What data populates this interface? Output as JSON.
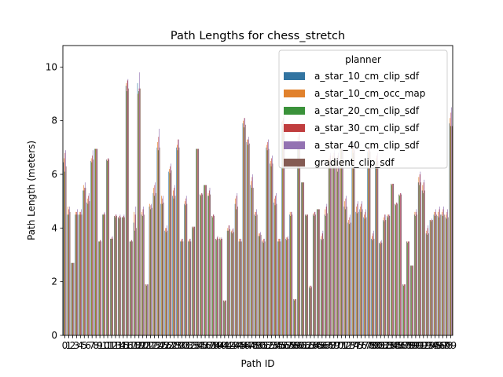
{
  "chart_data": {
    "type": "bar",
    "title": "Path Lengths for chess_stretch",
    "xlabel": "Path ID",
    "ylabel": "Path Length (meters)",
    "ylim": [
      0,
      10.8
    ],
    "yticks": [
      0,
      2,
      4,
      6,
      8,
      10
    ],
    "grid": false,
    "legend": {
      "title": "planner",
      "placement": "top-right"
    },
    "categories": [
      "0",
      "1",
      "2",
      "3",
      "4",
      "5",
      "6",
      "7",
      "8",
      "9",
      "10",
      "11",
      "12",
      "13",
      "14",
      "15",
      "16",
      "17",
      "18",
      "19",
      "20",
      "21",
      "22",
      "23",
      "24",
      "25",
      "26",
      "27",
      "28",
      "29",
      "30",
      "31",
      "32",
      "33",
      "34",
      "35",
      "36",
      "37",
      "38",
      "39",
      "40",
      "41",
      "42",
      "43",
      "44",
      "45",
      "46",
      "47",
      "48",
      "49",
      "50",
      "51",
      "52",
      "53",
      "54",
      "55",
      "56",
      "57",
      "58",
      "59",
      "60",
      "61",
      "62",
      "63",
      "64",
      "65",
      "66",
      "67",
      "68",
      "69",
      "70",
      "71",
      "72",
      "73",
      "74",
      "75",
      "76",
      "77",
      "78",
      "79",
      "80",
      "81",
      "82",
      "83",
      "84",
      "85",
      "86",
      "87",
      "88",
      "89",
      "90",
      "91",
      "92",
      "93",
      "94",
      "95",
      "96",
      "97",
      "98",
      "99"
    ],
    "series": [
      {
        "name": "a_star_10_cm_clip_sdf",
        "color": "#3274a1",
        "values": [
          6.45,
          4.5,
          2.7,
          4.5,
          4.5,
          5.4,
          4.95,
          6.5,
          6.95,
          3.5,
          4.5,
          6.55,
          3.6,
          4.45,
          4.4,
          4.4,
          9.3,
          3.5,
          4.2,
          9.4,
          4.5,
          1.9,
          4.8,
          5.3,
          7.0,
          4.9,
          3.9,
          6.1,
          5.2,
          7.0,
          3.5,
          4.9,
          3.5,
          4.05,
          6.95,
          5.25,
          5.6,
          5.2,
          4.45,
          3.6,
          3.6,
          1.3,
          3.9,
          3.85,
          4.9,
          3.5,
          7.9,
          7.2,
          5.6,
          4.5,
          3.7,
          3.5,
          7.0,
          6.4,
          4.95,
          3.5,
          7.95,
          3.6,
          4.5,
          1.35,
          7.2,
          5.7,
          4.5,
          1.8,
          4.5,
          4.7,
          3.6,
          4.5,
          6.5,
          6.6,
          6.3,
          6.95,
          4.8,
          4.2,
          6.9,
          4.6,
          4.7,
          4.4,
          6.85,
          3.6,
          6.5,
          3.45,
          4.3,
          4.45,
          5.65,
          4.9,
          5.25,
          1.9,
          3.5,
          2.6,
          4.5,
          5.7,
          5.4,
          3.8,
          4.3,
          4.5,
          4.45,
          4.5,
          4.4,
          7.9
        ]
      },
      {
        "name": "a_star_10_cm_occ_map",
        "color": "#e1812c",
        "values": [
          6.6,
          4.8,
          2.7,
          4.6,
          4.6,
          5.6,
          5.1,
          6.6,
          6.95,
          3.5,
          4.5,
          6.55,
          3.6,
          4.45,
          4.4,
          4.4,
          9.4,
          3.5,
          4.6,
          9.0,
          4.6,
          1.9,
          4.9,
          5.5,
          7.2,
          5.2,
          4.0,
          6.2,
          5.4,
          7.1,
          3.55,
          5.0,
          3.55,
          4.05,
          6.95,
          5.25,
          5.6,
          5.3,
          4.45,
          3.6,
          3.65,
          1.3,
          4.0,
          3.9,
          5.1,
          3.6,
          8.0,
          7.3,
          5.75,
          4.6,
          3.8,
          3.55,
          7.1,
          6.5,
          5.1,
          3.6,
          8.0,
          3.65,
          4.6,
          1.35,
          7.4,
          5.7,
          4.5,
          1.85,
          4.55,
          4.7,
          3.7,
          4.7,
          6.6,
          6.7,
          6.5,
          6.95,
          5.0,
          4.3,
          7.0,
          4.8,
          4.8,
          4.5,
          6.9,
          3.7,
          6.6,
          3.45,
          4.4,
          4.5,
          5.65,
          4.9,
          5.25,
          1.9,
          3.5,
          2.6,
          4.6,
          5.9,
          5.6,
          3.9,
          4.3,
          4.6,
          4.6,
          4.6,
          4.5,
          8.1
        ]
      },
      {
        "name": "a_star_20_cm_clip_sdf",
        "color": "#3a923a",
        "values": [
          6.1,
          4.5,
          2.7,
          4.5,
          4.5,
          5.4,
          4.9,
          6.45,
          6.95,
          3.5,
          4.5,
          6.5,
          3.6,
          4.4,
          4.35,
          4.4,
          9.1,
          3.5,
          3.9,
          9.1,
          4.45,
          1.85,
          4.7,
          5.2,
          6.9,
          4.9,
          3.85,
          6.05,
          5.1,
          6.9,
          3.5,
          4.85,
          3.5,
          4.0,
          6.95,
          5.2,
          5.6,
          5.2,
          4.4,
          3.55,
          3.55,
          1.25,
          3.9,
          3.8,
          4.7,
          3.5,
          7.75,
          7.1,
          5.5,
          4.45,
          3.7,
          3.45,
          6.9,
          6.3,
          4.85,
          3.5,
          7.8,
          3.55,
          4.45,
          1.3,
          7.0,
          5.7,
          4.45,
          1.75,
          4.45,
          4.7,
          3.55,
          4.45,
          6.4,
          6.5,
          6.1,
          6.95,
          4.7,
          4.15,
          6.8,
          4.55,
          4.6,
          4.35,
          6.8,
          3.55,
          6.45,
          3.4,
          4.25,
          4.4,
          5.6,
          4.85,
          5.2,
          1.85,
          3.45,
          2.6,
          4.45,
          5.6,
          5.3,
          3.75,
          4.25,
          4.45,
          4.4,
          4.45,
          4.35,
          7.8
        ]
      },
      {
        "name": "a_star_30_cm_clip_sdf",
        "color": "#c03d3e",
        "values": [
          6.8,
          4.7,
          2.7,
          4.6,
          4.6,
          5.5,
          5.2,
          6.7,
          6.95,
          3.55,
          4.55,
          6.6,
          3.65,
          4.5,
          4.45,
          4.45,
          9.5,
          3.55,
          4.5,
          9.2,
          4.7,
          1.9,
          4.85,
          5.6,
          7.4,
          5.1,
          4.0,
          6.3,
          5.5,
          7.3,
          3.6,
          5.1,
          3.6,
          4.05,
          6.95,
          5.3,
          5.6,
          5.4,
          4.5,
          3.65,
          3.6,
          1.3,
          4.1,
          3.95,
          5.2,
          3.6,
          8.1,
          7.3,
          5.9,
          4.6,
          3.8,
          3.6,
          7.2,
          6.6,
          5.2,
          3.6,
          8.1,
          3.65,
          4.6,
          1.35,
          7.5,
          5.7,
          4.5,
          1.85,
          4.6,
          4.7,
          3.8,
          4.8,
          6.7,
          6.8,
          6.7,
          6.95,
          5.1,
          4.4,
          7.1,
          4.9,
          4.9,
          4.6,
          7.0,
          3.8,
          6.7,
          3.5,
          4.5,
          4.5,
          5.65,
          4.95,
          5.3,
          1.9,
          3.5,
          2.6,
          4.6,
          6.0,
          5.7,
          4.0,
          4.3,
          4.6,
          4.7,
          4.7,
          4.6,
          8.3
        ]
      },
      {
        "name": "a_star_40_cm_clip_sdf",
        "color": "#9372b2",
        "values": [
          6.9,
          4.8,
          2.7,
          4.7,
          4.7,
          5.7,
          5.3,
          6.9,
          6.95,
          3.55,
          4.6,
          6.6,
          3.7,
          4.5,
          4.5,
          4.5,
          9.55,
          3.55,
          4.8,
          9.8,
          4.8,
          1.9,
          4.9,
          5.7,
          7.7,
          5.2,
          4.1,
          6.4,
          5.6,
          7.3,
          3.6,
          5.2,
          3.6,
          4.05,
          6.95,
          5.3,
          5.6,
          5.5,
          4.5,
          3.7,
          3.65,
          1.3,
          4.1,
          4.0,
          5.3,
          3.6,
          8.1,
          7.4,
          6.0,
          4.7,
          3.85,
          3.6,
          7.3,
          6.7,
          5.3,
          3.6,
          8.2,
          3.7,
          4.6,
          1.35,
          7.7,
          5.7,
          4.5,
          1.85,
          4.6,
          4.7,
          3.9,
          4.9,
          6.8,
          6.9,
          6.8,
          6.95,
          5.2,
          4.5,
          7.2,
          5.0,
          5.0,
          4.7,
          7.1,
          3.9,
          6.8,
          3.55,
          4.5,
          4.5,
          5.65,
          4.95,
          5.3,
          1.9,
          3.5,
          2.6,
          4.7,
          6.1,
          5.8,
          4.1,
          4.35,
          4.7,
          4.8,
          4.8,
          4.7,
          8.5
        ]
      },
      {
        "name": "gradient_clip_sdf",
        "color": "#845b53",
        "values": [
          6.3,
          4.6,
          2.7,
          4.5,
          4.5,
          5.5,
          5.0,
          6.55,
          6.95,
          3.5,
          4.5,
          6.55,
          3.6,
          4.45,
          4.4,
          4.4,
          9.2,
          3.5,
          4.0,
          9.2,
          4.5,
          1.9,
          4.75,
          5.3,
          7.0,
          4.95,
          3.9,
          6.15,
          5.2,
          7.0,
          3.5,
          4.9,
          3.5,
          4.05,
          6.95,
          5.25,
          5.6,
          5.25,
          4.45,
          3.6,
          3.6,
          1.3,
          3.95,
          3.85,
          4.8,
          3.5,
          7.85,
          7.15,
          5.5,
          4.5,
          3.75,
          3.5,
          6.95,
          6.4,
          4.9,
          3.5,
          7.9,
          3.6,
          4.5,
          1.35,
          7.2,
          5.7,
          4.5,
          1.8,
          4.5,
          4.7,
          3.6,
          4.55,
          6.5,
          6.6,
          6.3,
          6.95,
          4.8,
          4.2,
          6.9,
          4.6,
          4.7,
          4.4,
          6.85,
          3.6,
          6.5,
          3.45,
          4.3,
          4.45,
          5.65,
          4.9,
          5.25,
          1.9,
          3.5,
          2.6,
          4.5,
          5.7,
          5.4,
          3.8,
          4.3,
          4.5,
          4.5,
          4.5,
          4.4,
          7.8
        ]
      }
    ]
  }
}
